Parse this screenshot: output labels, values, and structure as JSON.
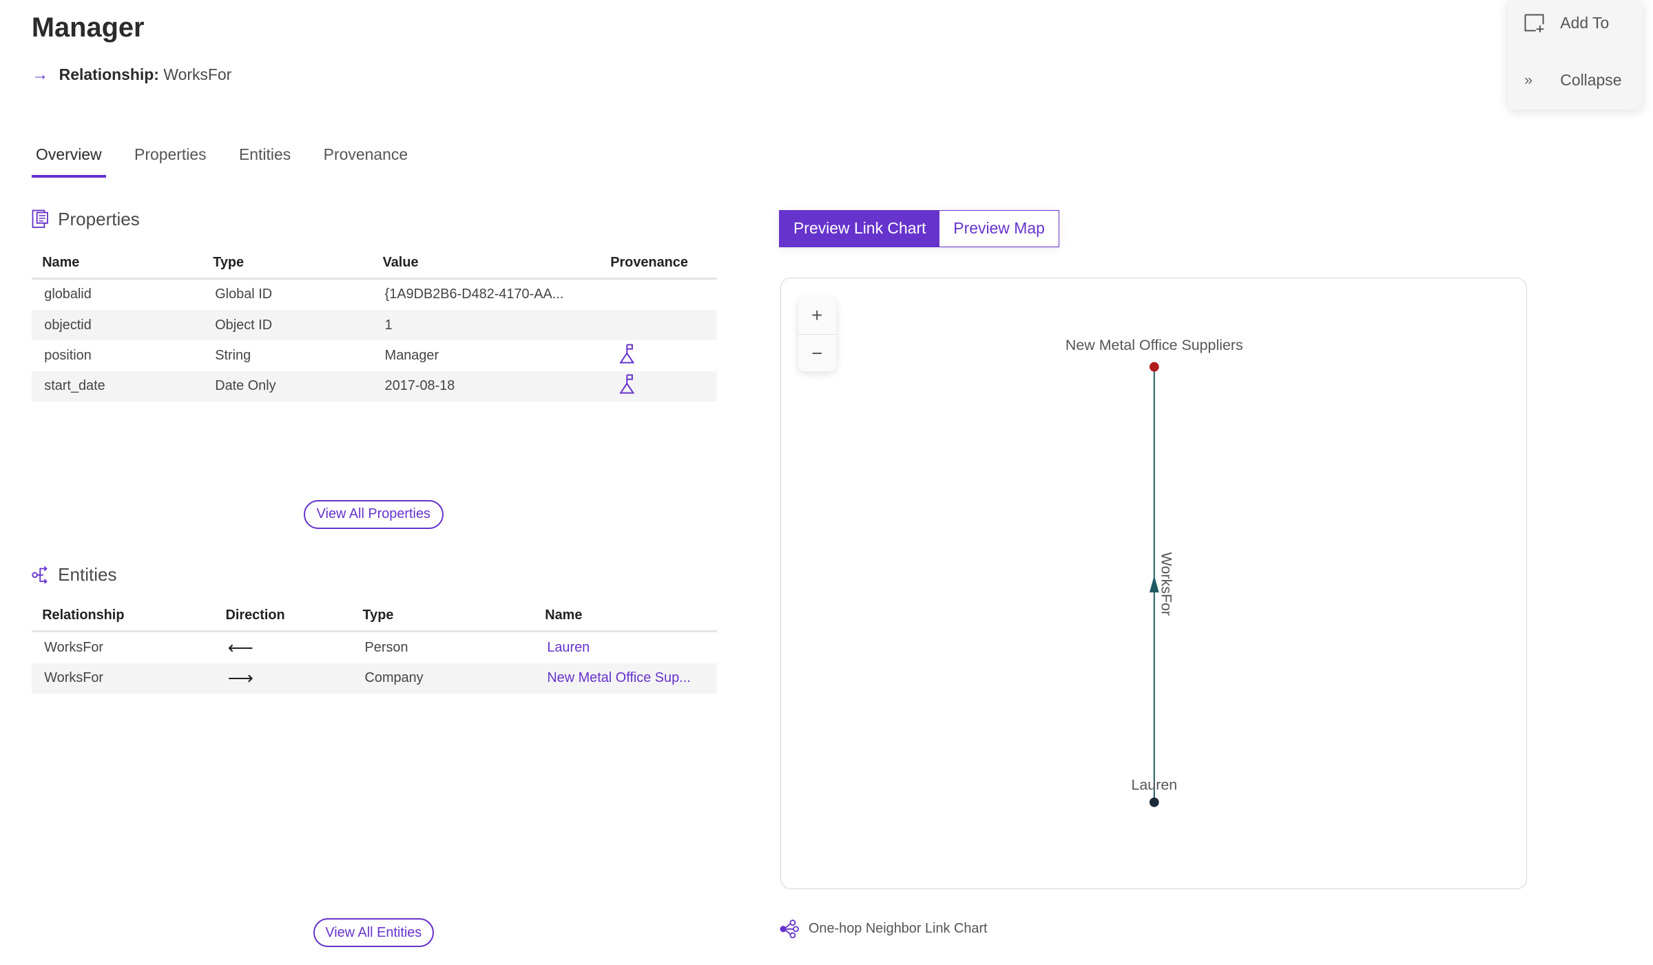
{
  "header": {
    "title": "Manager",
    "relationship_label": "Relationship:",
    "relationship_value": "WorksFor"
  },
  "side_panel": {
    "add_to": "Add To",
    "collapse": "Collapse"
  },
  "tabs": [
    {
      "label": "Overview",
      "active": true
    },
    {
      "label": "Properties"
    },
    {
      "label": "Entities"
    },
    {
      "label": "Provenance"
    }
  ],
  "properties": {
    "title": "Properties",
    "columns": [
      "Name",
      "Type",
      "Value",
      "Provenance"
    ],
    "rows": [
      {
        "name": "globalid",
        "type": "Global ID",
        "value": "{1A9DB2B6-D482-4170-AA...",
        "provenance": false
      },
      {
        "name": "objectid",
        "type": "Object ID",
        "value": "1",
        "provenance": false
      },
      {
        "name": "position",
        "type": "String",
        "value": "Manager",
        "provenance": true
      },
      {
        "name": "start_date",
        "type": "Date Only",
        "value": "2017-08-18",
        "provenance": true
      }
    ],
    "view_all": "View All Properties"
  },
  "entities": {
    "title": "Entities",
    "columns": [
      "Relationship",
      "Direction",
      "Type",
      "Name"
    ],
    "rows": [
      {
        "relationship": "WorksFor",
        "direction": "⟵",
        "type": "Person",
        "name": "Lauren"
      },
      {
        "relationship": "WorksFor",
        "direction": "⟶",
        "type": "Company",
        "name": "New Metal Office Sup..."
      }
    ],
    "view_all": "View All Entities"
  },
  "preview": {
    "buttons": [
      {
        "label": "Preview Link Chart",
        "active": true
      },
      {
        "label": "Preview Map",
        "active": false
      }
    ],
    "zoom_in": "+",
    "zoom_out": "−",
    "nodes": [
      {
        "label": "New Metal Office Suppliers",
        "color": "#b01c1c"
      },
      {
        "label": "Lauren",
        "color": "#1a2a38"
      }
    ],
    "edge": {
      "label": "WorksFor",
      "color": "#1f5a63"
    },
    "footer": "One-hop Neighbor Link Chart"
  },
  "colors": {
    "accent": "#6633cc"
  }
}
